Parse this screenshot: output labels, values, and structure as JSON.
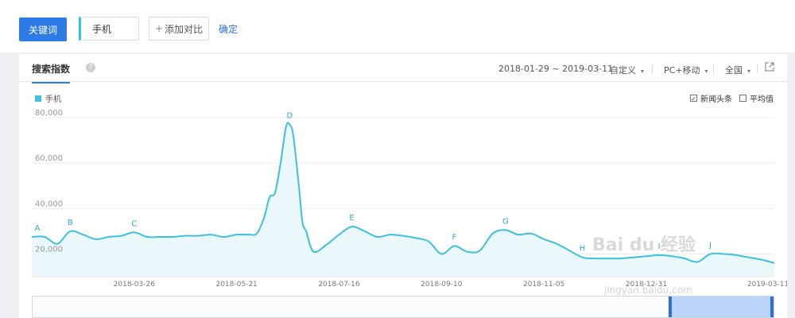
{
  "topbar": {
    "keyword_button": "关键词",
    "keyword_value": "手机",
    "add_compare": "添加对比",
    "add_plus": "+",
    "confirm": "确定"
  },
  "panel": {
    "tab": "搜索指数",
    "help": "?",
    "date_range": "2018-01-29 ~ 2019-03-11",
    "custom": "自定义",
    "device": "PC+移动",
    "region": "全国",
    "caret": "▾"
  },
  "legend": {
    "series": "手机",
    "color": "#3cc0dc"
  },
  "options": {
    "news": "新闻头条",
    "news_checked": "✓",
    "avg": "平均值"
  },
  "chart_data": {
    "type": "area",
    "ylim": [
      10000,
      80000
    ],
    "yticks": [
      "80,000",
      "60,000",
      "40,000",
      "20,000"
    ],
    "ytick_values": [
      80000,
      60000,
      40000,
      20000
    ],
    "xticks": [
      "2018-03-26",
      "2018-05-21",
      "2018-07-16",
      "2018-09-10",
      "2018-11-05",
      "2018-12-31",
      "2019-03-11"
    ],
    "xtick_dates": [
      "2018-03-26",
      "2018-05-21",
      "2018-07-16",
      "2018-09-10",
      "2018-11-05",
      "2018-12-31",
      "2019-03-11"
    ],
    "x_start": "2018-01-29",
    "x_end": "2019-03-11",
    "series": [
      {
        "name": "手机",
        "points": [
          [
            "2018-01-29",
            27500
          ],
          [
            "2018-02-05",
            27500
          ],
          [
            "2018-02-12",
            24500
          ],
          [
            "2018-02-19",
            30000
          ],
          [
            "2018-02-26",
            28500
          ],
          [
            "2018-03-05",
            26500
          ],
          [
            "2018-03-12",
            27500
          ],
          [
            "2018-03-19",
            28000
          ],
          [
            "2018-03-26",
            29500
          ],
          [
            "2018-04-02",
            27500
          ],
          [
            "2018-04-09",
            27500
          ],
          [
            "2018-04-16",
            27500
          ],
          [
            "2018-04-23",
            28000
          ],
          [
            "2018-04-30",
            28000
          ],
          [
            "2018-05-07",
            28500
          ],
          [
            "2018-05-14",
            27500
          ],
          [
            "2018-05-21",
            28500
          ],
          [
            "2018-05-28",
            28500
          ],
          [
            "2018-06-01",
            29000
          ],
          [
            "2018-06-05",
            36000
          ],
          [
            "2018-06-08",
            45000
          ],
          [
            "2018-06-11",
            47000
          ],
          [
            "2018-06-14",
            60000
          ],
          [
            "2018-06-17",
            76000
          ],
          [
            "2018-06-19",
            77000
          ],
          [
            "2018-06-21",
            72000
          ],
          [
            "2018-06-24",
            50000
          ],
          [
            "2018-06-26",
            34000
          ],
          [
            "2018-06-28",
            30000
          ],
          [
            "2018-07-02",
            21000
          ],
          [
            "2018-07-09",
            24000
          ],
          [
            "2018-07-16",
            28500
          ],
          [
            "2018-07-23",
            32000
          ],
          [
            "2018-07-30",
            30000
          ],
          [
            "2018-08-06",
            27500
          ],
          [
            "2018-08-13",
            28500
          ],
          [
            "2018-08-20",
            28000
          ],
          [
            "2018-08-27",
            27000
          ],
          [
            "2018-09-03",
            25500
          ],
          [
            "2018-09-10",
            20000
          ],
          [
            "2018-09-17",
            23500
          ],
          [
            "2018-09-24",
            21000
          ],
          [
            "2018-10-01",
            21500
          ],
          [
            "2018-10-08",
            29000
          ],
          [
            "2018-10-15",
            30500
          ],
          [
            "2018-10-22",
            28500
          ],
          [
            "2018-10-29",
            29000
          ],
          [
            "2018-11-05",
            26500
          ],
          [
            "2018-11-12",
            24500
          ],
          [
            "2018-11-19",
            21500
          ],
          [
            "2018-11-26",
            18500
          ],
          [
            "2018-12-03",
            18000
          ],
          [
            "2018-12-10",
            18000
          ],
          [
            "2018-12-17",
            18000
          ],
          [
            "2018-12-24",
            18500
          ],
          [
            "2018-12-31",
            19000
          ],
          [
            "2019-01-07",
            19500
          ],
          [
            "2019-01-14",
            19000
          ],
          [
            "2019-01-21",
            18000
          ],
          [
            "2019-01-28",
            16500
          ],
          [
            "2019-02-04",
            20000
          ],
          [
            "2019-02-11",
            20000
          ],
          [
            "2019-02-18",
            19500
          ],
          [
            "2019-02-25",
            18500
          ],
          [
            "2019-03-04",
            17500
          ],
          [
            "2019-03-11",
            16000
          ]
        ]
      }
    ],
    "annotations": [
      {
        "label": "A",
        "date": "2018-02-01",
        "value": 27500
      },
      {
        "label": "B",
        "date": "2018-02-19",
        "value": 30000
      },
      {
        "label": "C",
        "date": "2018-03-26",
        "value": 29500
      },
      {
        "label": "D",
        "date": "2018-06-19",
        "value": 77000
      },
      {
        "label": "E",
        "date": "2018-07-23",
        "value": 32000
      },
      {
        "label": "F",
        "date": "2018-09-17",
        "value": 23500
      },
      {
        "label": "G",
        "date": "2018-10-15",
        "value": 30500
      },
      {
        "label": "H",
        "date": "2018-11-26",
        "value": 18500
      },
      {
        "label": "I",
        "date": "2019-01-07",
        "value": 19500
      },
      {
        "label": "J",
        "date": "2019-02-04",
        "value": 20000
      }
    ],
    "line_color": "#3cc0dc",
    "fill_color": "#eaf7fb",
    "grid": true
  },
  "watermark": {
    "text": "Bai du 经验",
    "url": "jingyan.baidu.com"
  }
}
